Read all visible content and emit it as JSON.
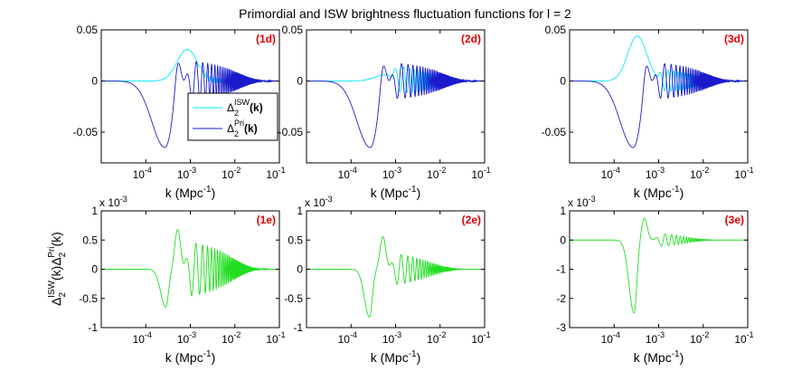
{
  "title": "Primordial and ISW brightness fluctuation functions for l = 2",
  "colors": {
    "isw": "#00e5ff",
    "pri": "#1a1acc",
    "product": "#22dd22",
    "label": "#e00000"
  },
  "legend": {
    "isw_label_base": "Δ",
    "isw_label_sub": "2",
    "isw_label_sup": "ISW",
    "isw_label_arg": "(k)",
    "pri_label_base": "Δ",
    "pri_label_sub": "2",
    "pri_label_sup": "Pri",
    "pri_label_arg": "(k)"
  },
  "row2_ylabel": {
    "base1": "Δ",
    "sub1": "2",
    "sup1": "ISW",
    "mid": "(k)",
    "base2": "Δ",
    "sub2": "2",
    "sup2": "Pri",
    "end": "(k)"
  },
  "chart_data": [
    {
      "id": "1d",
      "label": "(1d)",
      "type": "line",
      "xscale": "log",
      "xlim": [
        1e-05,
        0.1
      ],
      "ylim": [
        -0.08,
        0.05
      ],
      "yticks": [
        "-0.05",
        "0",
        "0.05"
      ],
      "ytick_values": [
        -0.05,
        0,
        0.05
      ],
      "xlabel": "k (Mpc⁻¹)",
      "legend": "bottom-right",
      "series": [
        {
          "name": "ISW",
          "model": {
            "kind": "isw",
            "amp": 0.031,
            "center": 0.00085,
            "width": 0.32,
            "tail_amp": 0.004,
            "tail_k0": 0.0011,
            "tail_decay": 0.008
          }
        },
        {
          "name": "Pri",
          "model": {
            "kind": "pri",
            "min": -0.065,
            "kmin": 0.00027,
            "kmax": 0.00052,
            "max": 0.031,
            "osc_amp": 0.02,
            "osc_decay": 0.012,
            "osc_start": 0.0007
          }
        }
      ]
    },
    {
      "id": "2d",
      "label": "(2d)",
      "type": "line",
      "xscale": "log",
      "xlim": [
        1e-05,
        0.1
      ],
      "ylim": [
        -0.08,
        0.05
      ],
      "yticks": [
        "-0.05",
        "0",
        "0.05"
      ],
      "ytick_values": [
        -0.05,
        0,
        0.05
      ],
      "xlabel": "k (Mpc⁻¹)",
      "series": [
        {
          "name": "ISW",
          "model": {
            "kind": "isw_osc",
            "amp": 0.006,
            "center": 0.0006,
            "width": 0.35,
            "osc_amp": 0.014,
            "osc_decay": 0.008,
            "osc_start": 0.0007
          }
        },
        {
          "name": "Pri",
          "model": {
            "kind": "pri",
            "min": -0.065,
            "kmin": 0.00027,
            "kmax": 0.00052,
            "max": 0.028,
            "osc_amp": 0.018,
            "osc_decay": 0.012,
            "osc_start": 0.0007
          }
        }
      ]
    },
    {
      "id": "3d",
      "label": "(3d)",
      "type": "line",
      "xscale": "log",
      "xlim": [
        1e-05,
        0.1
      ],
      "ylim": [
        -0.08,
        0.05
      ],
      "yticks": [
        "-0.05",
        "0",
        "0.05"
      ],
      "ytick_values": [
        -0.05,
        0,
        0.05
      ],
      "xlabel": "k (Mpc⁻¹)",
      "series": [
        {
          "name": "ISW",
          "model": {
            "kind": "isw_osc",
            "amp": 0.044,
            "center": 0.00033,
            "width": 0.3,
            "osc_amp": 0.012,
            "osc_decay": 0.007,
            "osc_start": 0.0008
          }
        },
        {
          "name": "Pri",
          "model": {
            "kind": "pri",
            "min": -0.065,
            "kmin": 0.00027,
            "kmax": 0.00052,
            "max": 0.028,
            "osc_amp": 0.018,
            "osc_decay": 0.012,
            "osc_start": 0.0007
          }
        }
      ]
    },
    {
      "id": "1e",
      "label": "(1e)",
      "type": "line",
      "xscale": "log",
      "xlim": [
        1e-05,
        0.1
      ],
      "ylim": [
        -1,
        1
      ],
      "yscale_note": "x 10-3",
      "yticks": [
        "-1",
        "-0.5",
        "0",
        "0.5",
        "1"
      ],
      "ytick_values": [
        -1,
        -0.5,
        0,
        0.5,
        1
      ],
      "xlabel": "k (Mpc⁻¹)",
      "series": [
        {
          "name": "product",
          "model": {
            "kind": "product",
            "min": -0.65,
            "kmin": 0.00028,
            "max": 0.68,
            "kmax": 0.00052,
            "osc_amp": 0.48,
            "osc_decay": 0.009,
            "osc_start": 0.00068
          }
        }
      ]
    },
    {
      "id": "2e",
      "label": "(2e)",
      "type": "line",
      "xscale": "log",
      "xlim": [
        1e-05,
        0.1
      ],
      "ylim": [
        -1,
        1
      ],
      "yscale_note": "x 10-3",
      "yticks": [
        "-1",
        "-0.5",
        "0",
        "0.5",
        "1"
      ],
      "ytick_values": [
        -1,
        -0.5,
        0,
        0.5,
        1
      ],
      "xlabel": "k (Mpc⁻¹)",
      "series": [
        {
          "name": "product",
          "model": {
            "kind": "product",
            "min": -0.82,
            "kmin": 0.00026,
            "max": 0.56,
            "kmax": 0.00052,
            "osc_amp": 0.28,
            "osc_decay": 0.006,
            "osc_start": 0.00068
          }
        }
      ]
    },
    {
      "id": "3e",
      "label": "(3e)",
      "type": "line",
      "xscale": "log",
      "xlim": [
        1e-05,
        0.1
      ],
      "ylim": [
        -3,
        1
      ],
      "yscale_note": "x 10-3",
      "yticks": [
        "-3",
        "-2",
        "-1",
        "0",
        "1"
      ],
      "ytick_values": [
        -3,
        -2,
        -1,
        0,
        1
      ],
      "xlabel": "k (Mpc⁻¹)",
      "series": [
        {
          "name": "product",
          "model": {
            "kind": "product",
            "min": -2.5,
            "kmin": 0.00028,
            "max": 0.75,
            "kmax": 0.00048,
            "osc_amp": 0.25,
            "osc_decay": 0.004,
            "osc_start": 0.00075
          }
        }
      ]
    }
  ],
  "xticks": [
    {
      "label": "10",
      "exp": "-4",
      "value": 0.0001
    },
    {
      "label": "10",
      "exp": "-3",
      "value": 0.001
    },
    {
      "label": "10",
      "exp": "-2",
      "value": 0.01
    },
    {
      "label": "10",
      "exp": "-1",
      "value": 0.1
    }
  ],
  "xlabel_parts": {
    "pre": "k (Mpc",
    "sup": "-1",
    "post": ")"
  },
  "yscale_parts": {
    "pre": "x 10",
    "sup": "-3"
  }
}
